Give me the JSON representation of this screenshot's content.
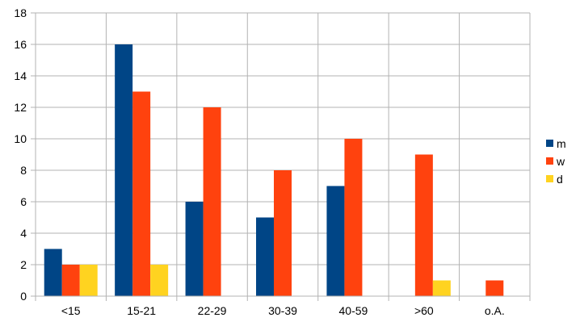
{
  "chart_data": {
    "type": "bar",
    "categories": [
      "<15",
      "15-21",
      "22-29",
      "30-39",
      "40-59",
      ">60",
      "o.A."
    ],
    "series": [
      {
        "name": "m",
        "color": "#004586",
        "values": [
          3,
          16,
          6,
          5,
          7,
          0,
          0
        ]
      },
      {
        "name": "w",
        "color": "#ff420e",
        "values": [
          2,
          13,
          12,
          8,
          10,
          9,
          1
        ]
      },
      {
        "name": "d",
        "color": "#ffd320",
        "values": [
          2,
          2,
          0,
          0,
          0,
          1,
          0
        ]
      }
    ],
    "ylim": [
      0,
      18
    ],
    "yticks": [
      0,
      2,
      4,
      6,
      8,
      10,
      12,
      14,
      16,
      18
    ],
    "grid": true,
    "legend": "right"
  }
}
